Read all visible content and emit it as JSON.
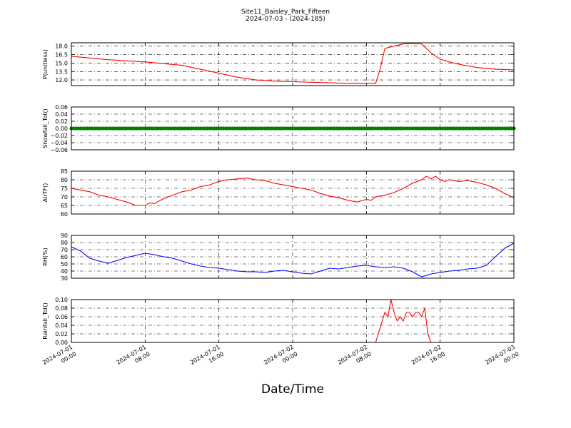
{
  "title": "Site11_Baisley_Park_Fifteen",
  "subtitle": "2024-07-03 - (2024-185)",
  "xlabel": "Date/Time",
  "x_ticks": [
    {
      "x": "2024-07-01 00:00",
      "line1": "2024-07-01",
      "line2": "00:00"
    },
    {
      "x": "2024-07-01 08:00",
      "line1": "2024-07-01",
      "line2": "08:00"
    },
    {
      "x": "2024-07-01 16:00",
      "line1": "2024-07-01",
      "line2": "16:00"
    },
    {
      "x": "2024-07-02 00:00",
      "line1": "2024-07-02",
      "line2": "00:00"
    },
    {
      "x": "2024-07-02 08:00",
      "line1": "2024-07-02",
      "line2": "08:00"
    },
    {
      "x": "2024-07-02 16:00",
      "line1": "2024-07-02",
      "line2": "16:00"
    },
    {
      "x": "2024-07-03 00:00",
      "line1": "2024-07-03",
      "line2": "00:00"
    }
  ],
  "chart_data": [
    {
      "type": "line",
      "ylabel": "P(unitless)",
      "ylim": [
        11.0,
        18.6
      ],
      "yticks": [
        "12.0",
        "13.5",
        "15.0",
        "16.5",
        "18.0"
      ],
      "xlim": [
        "2024-07-01 00:00",
        "2024-07-03 00:00"
      ],
      "grid": true,
      "series": [
        {
          "color": "#ff0000",
          "points": [
            [
              "2024-07-01 00:00",
              16.2
            ],
            [
              "2024-07-01 02:00",
              15.9
            ],
            [
              "2024-07-01 04:00",
              15.6
            ],
            [
              "2024-07-01 06:00",
              15.4
            ],
            [
              "2024-07-01 08:00",
              15.2
            ],
            [
              "2024-07-01 10:00",
              14.9
            ],
            [
              "2024-07-01 12:00",
              14.6
            ],
            [
              "2024-07-01 14:00",
              13.9
            ],
            [
              "2024-07-01 16:00",
              13.2
            ],
            [
              "2024-07-01 18:00",
              12.5
            ],
            [
              "2024-07-01 20:00",
              12.0
            ],
            [
              "2024-07-01 22:00",
              11.8
            ],
            [
              "2024-07-02 00:00",
              11.7
            ],
            [
              "2024-07-02 02:00",
              11.6
            ],
            [
              "2024-07-02 04:00",
              11.5
            ],
            [
              "2024-07-02 06:00",
              11.4
            ],
            [
              "2024-07-02 08:00",
              11.4
            ],
            [
              "2024-07-02 09:00",
              11.4
            ],
            [
              "2024-07-02 09:30",
              14.0
            ],
            [
              "2024-07-02 10:00",
              17.6
            ],
            [
              "2024-07-02 11:00",
              18.0
            ],
            [
              "2024-07-02 12:00",
              18.4
            ],
            [
              "2024-07-02 13:00",
              18.5
            ],
            [
              "2024-07-02 14:00",
              18.4
            ],
            [
              "2024-07-02 15:00",
              16.8
            ],
            [
              "2024-07-02 16:00",
              15.7
            ],
            [
              "2024-07-02 17:00",
              15.2
            ],
            [
              "2024-07-02 18:00",
              14.8
            ],
            [
              "2024-07-02 20:00",
              14.2
            ],
            [
              "2024-07-02 22:00",
              13.9
            ],
            [
              "2024-07-03 00:00",
              13.8
            ]
          ]
        }
      ]
    },
    {
      "type": "scatter",
      "ylabel": "Snowfall_Tot()",
      "ylim": [
        -0.06,
        0.06
      ],
      "yticks": [
        "−0.06",
        "−0.04",
        "−0.02",
        "0.00",
        "0.02",
        "0.04",
        "0.06"
      ],
      "xlim": [
        "2024-07-01 00:00",
        "2024-07-03 00:00"
      ],
      "grid": true,
      "series": [
        {
          "color": "#008000",
          "constant": 0.0,
          "from": "2024-07-01 00:00",
          "to": "2024-07-03 00:00",
          "step_minutes": 15
        }
      ]
    },
    {
      "type": "line",
      "ylabel": "AirTF()",
      "ylim": [
        60,
        85
      ],
      "yticks": [
        "60",
        "65",
        "70",
        "75",
        "80",
        "85"
      ],
      "xlim": [
        "2024-07-01 00:00",
        "2024-07-03 00:00"
      ],
      "grid": true,
      "series": [
        {
          "color": "#ff0000",
          "points": [
            [
              "2024-07-01 00:00",
              75.0
            ],
            [
              "2024-07-01 01:00",
              74.0
            ],
            [
              "2024-07-01 02:00",
              73.0
            ],
            [
              "2024-07-01 03:00",
              71.0
            ],
            [
              "2024-07-01 04:00",
              70.0
            ],
            [
              "2024-07-01 05:00",
              68.5
            ],
            [
              "2024-07-01 06:00",
              67.0
            ],
            [
              "2024-07-01 07:00",
              65.0
            ],
            [
              "2024-07-01 08:00",
              65.0
            ],
            [
              "2024-07-01 08:30",
              66.5
            ],
            [
              "2024-07-01 09:00",
              66.0
            ],
            [
              "2024-07-01 10:00",
              69.0
            ],
            [
              "2024-07-01 11:00",
              71.0
            ],
            [
              "2024-07-01 12:00",
              73.0
            ],
            [
              "2024-07-01 13:00",
              74.0
            ],
            [
              "2024-07-01 14:00",
              76.0
            ],
            [
              "2024-07-01 15:00",
              77.0
            ],
            [
              "2024-07-01 16:00",
              79.0
            ],
            [
              "2024-07-01 17:00",
              80.0
            ],
            [
              "2024-07-01 18:00",
              80.5
            ],
            [
              "2024-07-01 19:00",
              81.0
            ],
            [
              "2024-07-01 20:00",
              80.0
            ],
            [
              "2024-07-01 21:00",
              79.5
            ],
            [
              "2024-07-01 22:00",
              78.0
            ],
            [
              "2024-07-01 23:00",
              77.0
            ],
            [
              "2024-07-02 00:00",
              76.0
            ],
            [
              "2024-07-02 01:00",
              75.0
            ],
            [
              "2024-07-02 02:00",
              74.0
            ],
            [
              "2024-07-02 03:00",
              72.0
            ],
            [
              "2024-07-02 04:00",
              70.5
            ],
            [
              "2024-07-02 05:00",
              69.5
            ],
            [
              "2024-07-02 06:00",
              68.0
            ],
            [
              "2024-07-02 07:00",
              67.0
            ],
            [
              "2024-07-02 08:00",
              68.5
            ],
            [
              "2024-07-02 08:30",
              68.0
            ],
            [
              "2024-07-02 09:00",
              70.0
            ],
            [
              "2024-07-02 10:00",
              71.0
            ],
            [
              "2024-07-02 11:00",
              72.5
            ],
            [
              "2024-07-02 12:00",
              75.0
            ],
            [
              "2024-07-02 13:00",
              78.0
            ],
            [
              "2024-07-02 14:00",
              80.0
            ],
            [
              "2024-07-02 14:30",
              82.0
            ],
            [
              "2024-07-02 15:00",
              80.5
            ],
            [
              "2024-07-02 15:30",
              82.0
            ],
            [
              "2024-07-02 16:00",
              80.0
            ],
            [
              "2024-07-02 16:30",
              79.0
            ],
            [
              "2024-07-02 17:00",
              80.0
            ],
            [
              "2024-07-02 18:00",
              79.0
            ],
            [
              "2024-07-02 19:00",
              79.5
            ],
            [
              "2024-07-02 20:00",
              78.5
            ],
            [
              "2024-07-02 21:00",
              77.0
            ],
            [
              "2024-07-02 22:00",
              75.0
            ],
            [
              "2024-07-02 23:00",
              72.0
            ],
            [
              "2024-07-03 00:00",
              69.5
            ]
          ]
        }
      ]
    },
    {
      "type": "line",
      "ylabel": "RH(%)",
      "ylim": [
        30,
        90
      ],
      "yticks": [
        "30",
        "40",
        "50",
        "60",
        "70",
        "80",
        "90"
      ],
      "xlim": [
        "2024-07-01 00:00",
        "2024-07-03 00:00"
      ],
      "grid": true,
      "series": [
        {
          "color": "#0000ff",
          "points": [
            [
              "2024-07-01 00:00",
              74
            ],
            [
              "2024-07-01 01:00",
              68
            ],
            [
              "2024-07-01 02:00",
              58
            ],
            [
              "2024-07-01 03:00",
              54
            ],
            [
              "2024-07-01 04:00",
              51
            ],
            [
              "2024-07-01 05:00",
              55
            ],
            [
              "2024-07-01 06:00",
              59
            ],
            [
              "2024-07-01 07:00",
              62
            ],
            [
              "2024-07-01 08:00",
              65
            ],
            [
              "2024-07-01 09:00",
              63
            ],
            [
              "2024-07-01 10:00",
              60
            ],
            [
              "2024-07-01 11:00",
              58
            ],
            [
              "2024-07-01 12:00",
              54
            ],
            [
              "2024-07-01 13:00",
              50
            ],
            [
              "2024-07-01 14:00",
              47
            ],
            [
              "2024-07-01 15:00",
              45
            ],
            [
              "2024-07-01 16:00",
              44
            ],
            [
              "2024-07-01 17:00",
              42
            ],
            [
              "2024-07-01 18:00",
              40
            ],
            [
              "2024-07-01 19:00",
              39
            ],
            [
              "2024-07-01 20:00",
              39
            ],
            [
              "2024-07-01 21:00",
              38
            ],
            [
              "2024-07-01 22:00",
              40
            ],
            [
              "2024-07-01 23:00",
              41
            ],
            [
              "2024-07-02 00:00",
              39
            ],
            [
              "2024-07-02 01:00",
              37
            ],
            [
              "2024-07-02 02:00",
              36
            ],
            [
              "2024-07-02 03:00",
              40
            ],
            [
              "2024-07-02 04:00",
              44
            ],
            [
              "2024-07-02 05:00",
              43
            ],
            [
              "2024-07-02 06:00",
              45
            ],
            [
              "2024-07-02 07:00",
              47
            ],
            [
              "2024-07-02 08:00",
              48
            ],
            [
              "2024-07-02 09:00",
              46
            ],
            [
              "2024-07-02 10:00",
              45
            ],
            [
              "2024-07-02 11:00",
              46
            ],
            [
              "2024-07-02 12:00",
              44
            ],
            [
              "2024-07-02 13:00",
              39
            ],
            [
              "2024-07-02 14:00",
              32
            ],
            [
              "2024-07-02 15:00",
              36
            ],
            [
              "2024-07-02 16:00",
              38
            ],
            [
              "2024-07-02 17:00",
              40
            ],
            [
              "2024-07-02 18:00",
              41
            ],
            [
              "2024-07-02 19:00",
              43
            ],
            [
              "2024-07-02 20:00",
              44
            ],
            [
              "2024-07-02 21:00",
              48
            ],
            [
              "2024-07-02 22:00",
              60
            ],
            [
              "2024-07-02 23:00",
              72
            ],
            [
              "2024-07-03 00:00",
              79
            ]
          ]
        }
      ]
    },
    {
      "type": "line",
      "ylabel": "Rainfall_Tot()",
      "ylim": [
        0.0,
        0.1
      ],
      "yticks": [
        "0.00",
        "0.02",
        "0.04",
        "0.06",
        "0.08",
        "0.10"
      ],
      "xlim": [
        "2024-07-01 00:00",
        "2024-07-03 00:00"
      ],
      "grid": true,
      "series": [
        {
          "color": "#ff0000",
          "points": [
            [
              "2024-07-01 00:00",
              0.0
            ],
            [
              "2024-07-02 09:00",
              0.0
            ],
            [
              "2024-07-02 10:00",
              0.07
            ],
            [
              "2024-07-02 10:20",
              0.06
            ],
            [
              "2024-07-02 10:40",
              0.1
            ],
            [
              "2024-07-02 11:00",
              0.07
            ],
            [
              "2024-07-02 11:20",
              0.05
            ],
            [
              "2024-07-02 11:40",
              0.06
            ],
            [
              "2024-07-02 12:00",
              0.05
            ],
            [
              "2024-07-02 12:20",
              0.07
            ],
            [
              "2024-07-02 12:40",
              0.07
            ],
            [
              "2024-07-02 13:00",
              0.06
            ],
            [
              "2024-07-02 13:20",
              0.07
            ],
            [
              "2024-07-02 13:40",
              0.07
            ],
            [
              "2024-07-02 14:00",
              0.06
            ],
            [
              "2024-07-02 14:20",
              0.08
            ],
            [
              "2024-07-02 14:40",
              0.02
            ],
            [
              "2024-07-02 15:00",
              0.0
            ],
            [
              "2024-07-03 00:00",
              0.0
            ]
          ]
        }
      ]
    }
  ]
}
